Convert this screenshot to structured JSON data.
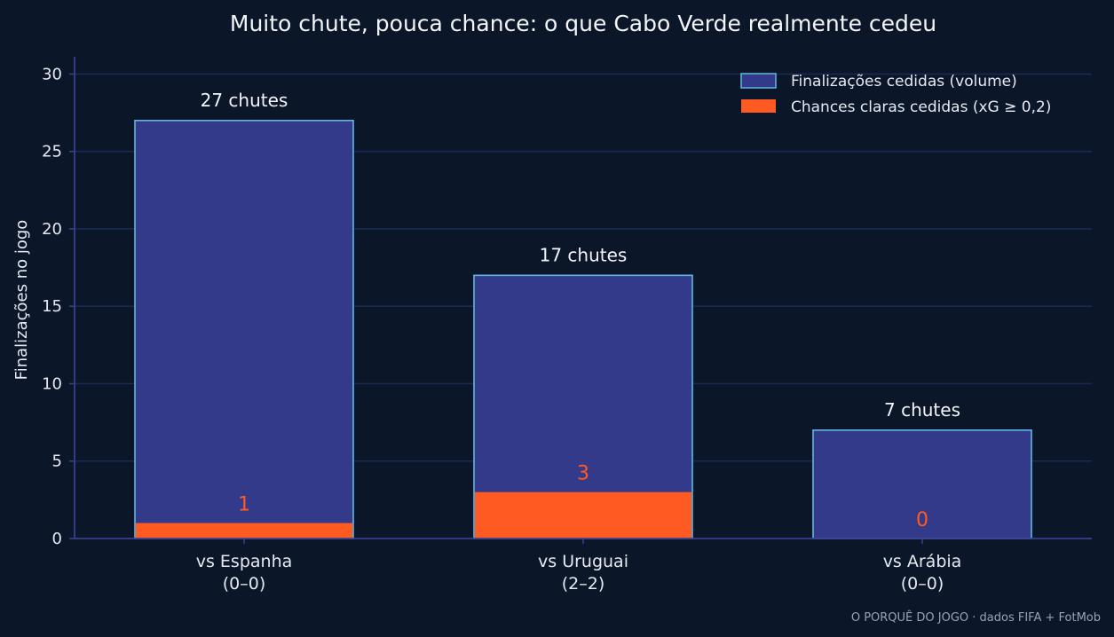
{
  "chart_data": {
    "type": "bar",
    "title": "Muito chute, pouca chance: o que Cabo Verde realmente cedeu",
    "ylabel": "Finalizações no jogo",
    "xlabel": "",
    "ylim": [
      0,
      31
    ],
    "yticks": [
      0,
      5,
      10,
      15,
      20,
      25,
      30
    ],
    "grid": true,
    "legend_position": "top-right",
    "categories": [
      {
        "line1": "vs Espanha",
        "line2": "(0–0)"
      },
      {
        "line1": "vs Uruguai",
        "line2": "(2–2)"
      },
      {
        "line1": "vs Arábia",
        "line2": "(0–0)"
      }
    ],
    "series": [
      {
        "name": "Finalizações cedidas (volume)",
        "values": [
          27,
          17,
          7
        ],
        "labels": [
          "27 chutes",
          "17 chutes",
          "7 chutes"
        ],
        "color": "#343a8a",
        "edge_color": "#5fb8e0"
      },
      {
        "name": "Chances claras cedidas (xG ≥ 0,2)",
        "values": [
          1,
          3,
          0
        ],
        "labels": [
          "1",
          "3",
          "0"
        ],
        "color": "#ff5a22"
      }
    ]
  },
  "footer": "O PORQUÊ DO JOGO · dados FIFA + FotMob",
  "colors": {
    "background": "#0b1628",
    "grid": "#1b2a52",
    "axis": "#3a3f8f",
    "text": "#e6e9f2"
  }
}
